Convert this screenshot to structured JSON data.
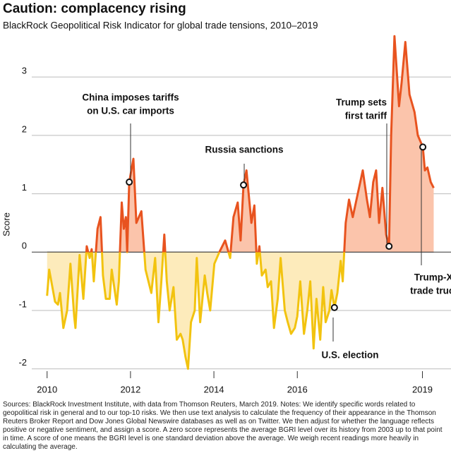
{
  "chart_data": {
    "type": "area-line",
    "title": "Caution: complacency rising",
    "subtitle": "BlackRock Geopolitical Risk Indicator for global trade tensions, 2010–2019",
    "y_label": "Score",
    "x": [
      2010,
      2010.05,
      2010.19,
      2010.26,
      2010.31,
      2010.39,
      2010.48,
      2010.56,
      2010.65,
      2010.68,
      2010.78,
      2010.87,
      2010.95,
      2011.02,
      2011.07,
      2011.12,
      2011.21,
      2011.28,
      2011.34,
      2011.41,
      2011.5,
      2011.55,
      2011.67,
      2011.72,
      2011.79,
      2011.84,
      2011.89,
      2011.92,
      2011.97,
      2012.07,
      2012.14,
      2012.26,
      2012.36,
      2012.43,
      2012.5,
      2012.59,
      2012.67,
      2012.74,
      2012.81,
      2012.87,
      2012.94,
      2013.03,
      2013.11,
      2013.2,
      2013.25,
      2013.32,
      2013.38,
      2013.45,
      2013.54,
      2013.59,
      2013.67,
      2013.78,
      2013.84,
      2013.91,
      2014.01,
      2014.13,
      2014.27,
      2014.39,
      2014.47,
      2014.57,
      2014.64,
      2014.71,
      2014.78,
      2014.9,
      2014.97,
      2015.03,
      2015.09,
      2015.15,
      2015.24,
      2015.29,
      2015.37,
      2015.44,
      2015.53,
      2015.6,
      2015.7,
      2015.77,
      2015.85,
      2015.94,
      2016,
      2016.07,
      2016.16,
      2016.24,
      2016.31,
      2016.39,
      2016.46,
      2016.55,
      2016.62,
      2016.68,
      2016.77,
      2016.82,
      2016.89,
      2016.96,
      2017.04,
      2017.09,
      2017.16,
      2017.24,
      2017.33,
      2017.45,
      2017.57,
      2017.67,
      2017.74,
      2017.82,
      2017.89,
      2017.96,
      2018.04,
      2018.13,
      2018.2,
      2018.25,
      2018.33,
      2018.44,
      2018.5,
      2018.59,
      2018.69,
      2018.81,
      2018.89,
      2019.01,
      2019.06,
      2019.12,
      2019.2,
      2019.27
    ],
    "values": [
      -0.75,
      -0.3,
      -0.85,
      -0.9,
      -0.7,
      -1.3,
      -1.0,
      -0.2,
      -1.1,
      -1.3,
      -0.05,
      -0.8,
      0.1,
      -0.1,
      0.05,
      -0.5,
      0.4,
      0.6,
      -0.4,
      -0.8,
      -0.8,
      -0.3,
      -0.9,
      -0.5,
      0.85,
      0.4,
      0.6,
      0.0,
      1.2,
      1.6,
      0.5,
      0.7,
      -0.3,
      -0.5,
      -0.7,
      -0.1,
      -1.2,
      -0.5,
      0.3,
      -0.5,
      -1.0,
      -0.6,
      -1.5,
      -1.4,
      -1.5,
      -1.8,
      -2.0,
      -1.2,
      -1.0,
      -0.1,
      -1.2,
      -0.4,
      -0.7,
      -1.0,
      -0.2,
      0.0,
      0.2,
      -0.1,
      0.6,
      0.85,
      0.2,
      1.15,
      1.4,
      0.5,
      0.8,
      -0.2,
      0.1,
      -0.4,
      -0.3,
      -0.6,
      -0.5,
      -1.3,
      -0.8,
      -0.1,
      -1.0,
      -1.2,
      -1.4,
      -1.3,
      -1.1,
      -0.5,
      -1.4,
      -1.0,
      -0.5,
      -1.65,
      -0.8,
      -1.5,
      -0.6,
      -1.2,
      -1.0,
      -0.65,
      -0.95,
      -0.7,
      -0.15,
      -0.5,
      0.5,
      0.9,
      0.6,
      1.0,
      1.4,
      0.9,
      0.6,
      1.2,
      1.4,
      0.5,
      1.1,
      0.3,
      0.1,
      2.0,
      3.7,
      2.5,
      2.9,
      3.6,
      2.7,
      2.4,
      2.0,
      1.8,
      1.4,
      1.45,
      1.2,
      1.1
    ],
    "colors": {
      "positive": "#e8531f",
      "negative": "#f2c30f",
      "positive_fill": "#fbc4ab",
      "negative_fill": "#fdebbb"
    },
    "xlim": [
      2009.7,
      2019.55
    ],
    "xticks": [
      2010,
      2012,
      2014,
      2016,
      2019
    ],
    "ylim": [
      -2.1,
      3.8
    ],
    "yticks": [
      -2,
      -1,
      0,
      1,
      2,
      3
    ],
    "grid": true,
    "annotations": [
      {
        "lines": [
          "China imposes tariffs",
          "on U.S. car imports"
        ],
        "x": 2011.97,
        "y": 1.2
      },
      {
        "lines": [
          "Russia sanctions"
        ],
        "x": 2014.71,
        "y": 1.15
      },
      {
        "lines": [
          "Trump sets",
          "first tariff"
        ],
        "x": 2018.2,
        "y": 0.1
      },
      {
        "lines": [
          "U.S. election"
        ],
        "x": 2016.89,
        "y": -0.95
      },
      {
        "lines": [
          "Trump-Xi",
          "trade truce"
        ],
        "x": 2019.01,
        "y": 1.8
      }
    ]
  },
  "notes": "Sources: BlackRock Investment Institute, with data from Thomson Reuters, March 2019. Notes: We identify specific words related to geopolitical risk in general and to our top-10 risks. We then use text analysis to calculate the frequency of their appearance in the Thomson Reuters Broker Report and Dow Jones Global Newswire databases as well as on Twitter. We then adjust for whether the language reflects positive or negative sentiment, and assign a score. A zero score represents the average BGRI level over its history from 2003 up to that point in time. A score of one means the BGRI level is one standard deviation above the average. We weigh recent readings more heavily in calculating the average."
}
